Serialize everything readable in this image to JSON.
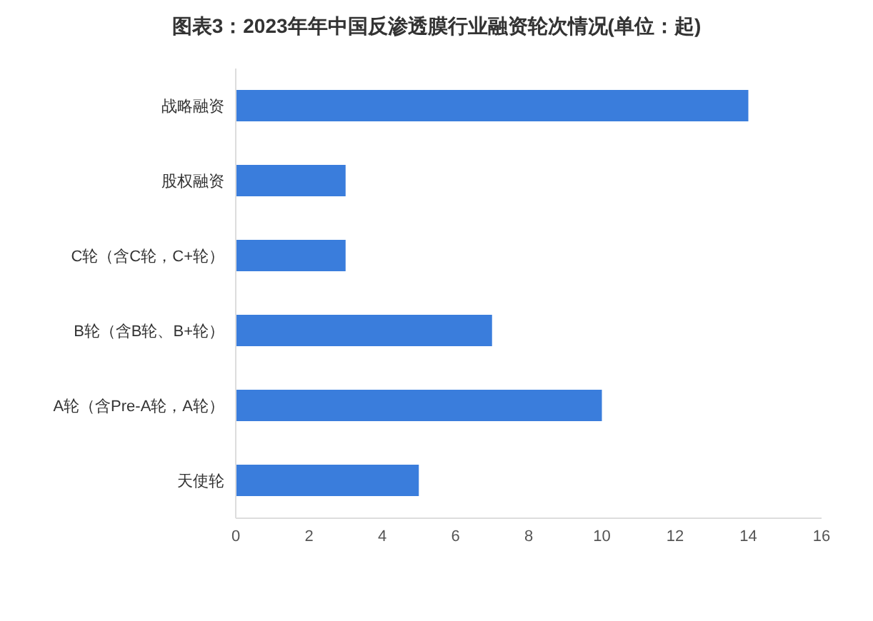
{
  "chart_data": {
    "type": "bar",
    "orientation": "horizontal",
    "title": "图表3：2023年年中国反渗透膜行业融资轮次情况(单位：起)",
    "categories": [
      "战略融资",
      "股权融资",
      "C轮（含C轮，C+轮）",
      "B轮（含B轮、B+轮）",
      "A轮（含Pre-A轮，A轮）",
      "天使轮"
    ],
    "values": [
      14,
      3,
      3,
      7,
      10,
      5
    ],
    "color": "#3a7ddc",
    "xlim": [
      0,
      16
    ],
    "xticks": [
      0,
      2,
      4,
      6,
      8,
      10,
      12,
      14,
      16
    ],
    "grid": false,
    "legend": false
  }
}
